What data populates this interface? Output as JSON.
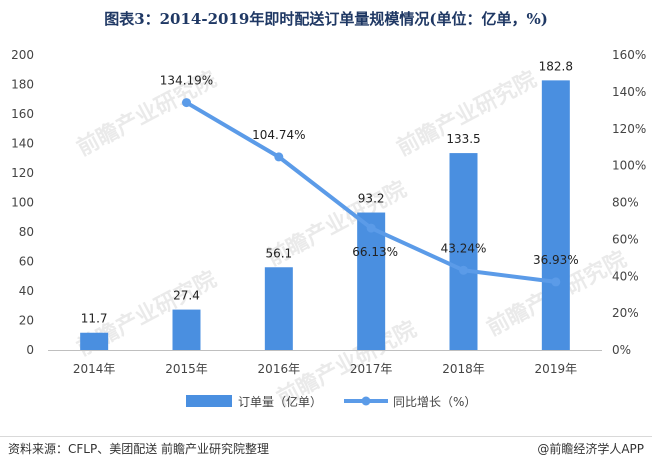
{
  "title": "图表3：2014-2019年即时配送订单量规模情况(单位：亿单，%)",
  "chart_data": {
    "type": "bar+line",
    "categories": [
      "2014年",
      "2015年",
      "2016年",
      "2017年",
      "2018年",
      "2019年"
    ],
    "series": [
      {
        "name": "订单量（亿单）",
        "type": "bar",
        "axis": "left",
        "values": [
          11.7,
          27.4,
          56.1,
          93.2,
          133.5,
          182.8
        ],
        "labels": [
          "11.7",
          "27.4",
          "56.1",
          "93.2",
          "133.5",
          "182.8"
        ]
      },
      {
        "name": "同比增长（%）",
        "type": "line",
        "axis": "right",
        "values": [
          null,
          134.19,
          104.74,
          66.13,
          43.24,
          36.93
        ],
        "labels": [
          "",
          "134.19%",
          "104.74%",
          "66.13%",
          "43.24%",
          "36.93%"
        ]
      }
    ],
    "y_left": {
      "range": [
        0,
        200
      ],
      "ticks": [
        "0",
        "20",
        "40",
        "60",
        "80",
        "100",
        "120",
        "140",
        "160",
        "180",
        "200"
      ]
    },
    "y_right": {
      "range": [
        0,
        160
      ],
      "ticks": [
        "0%",
        "20%",
        "40%",
        "60%",
        "80%",
        "100%",
        "120%",
        "140%",
        "160%"
      ]
    },
    "grid": false,
    "legend_position": "bottom",
    "colors": {
      "bar": "#4a8fe0",
      "line": "#5b9be8"
    }
  },
  "footer": {
    "source": "资料来源：CFLP、美团配送 前瞻产业研究院整理",
    "brand": "@前瞻经济学人APP"
  },
  "watermark_text": "前瞻产业研究院"
}
